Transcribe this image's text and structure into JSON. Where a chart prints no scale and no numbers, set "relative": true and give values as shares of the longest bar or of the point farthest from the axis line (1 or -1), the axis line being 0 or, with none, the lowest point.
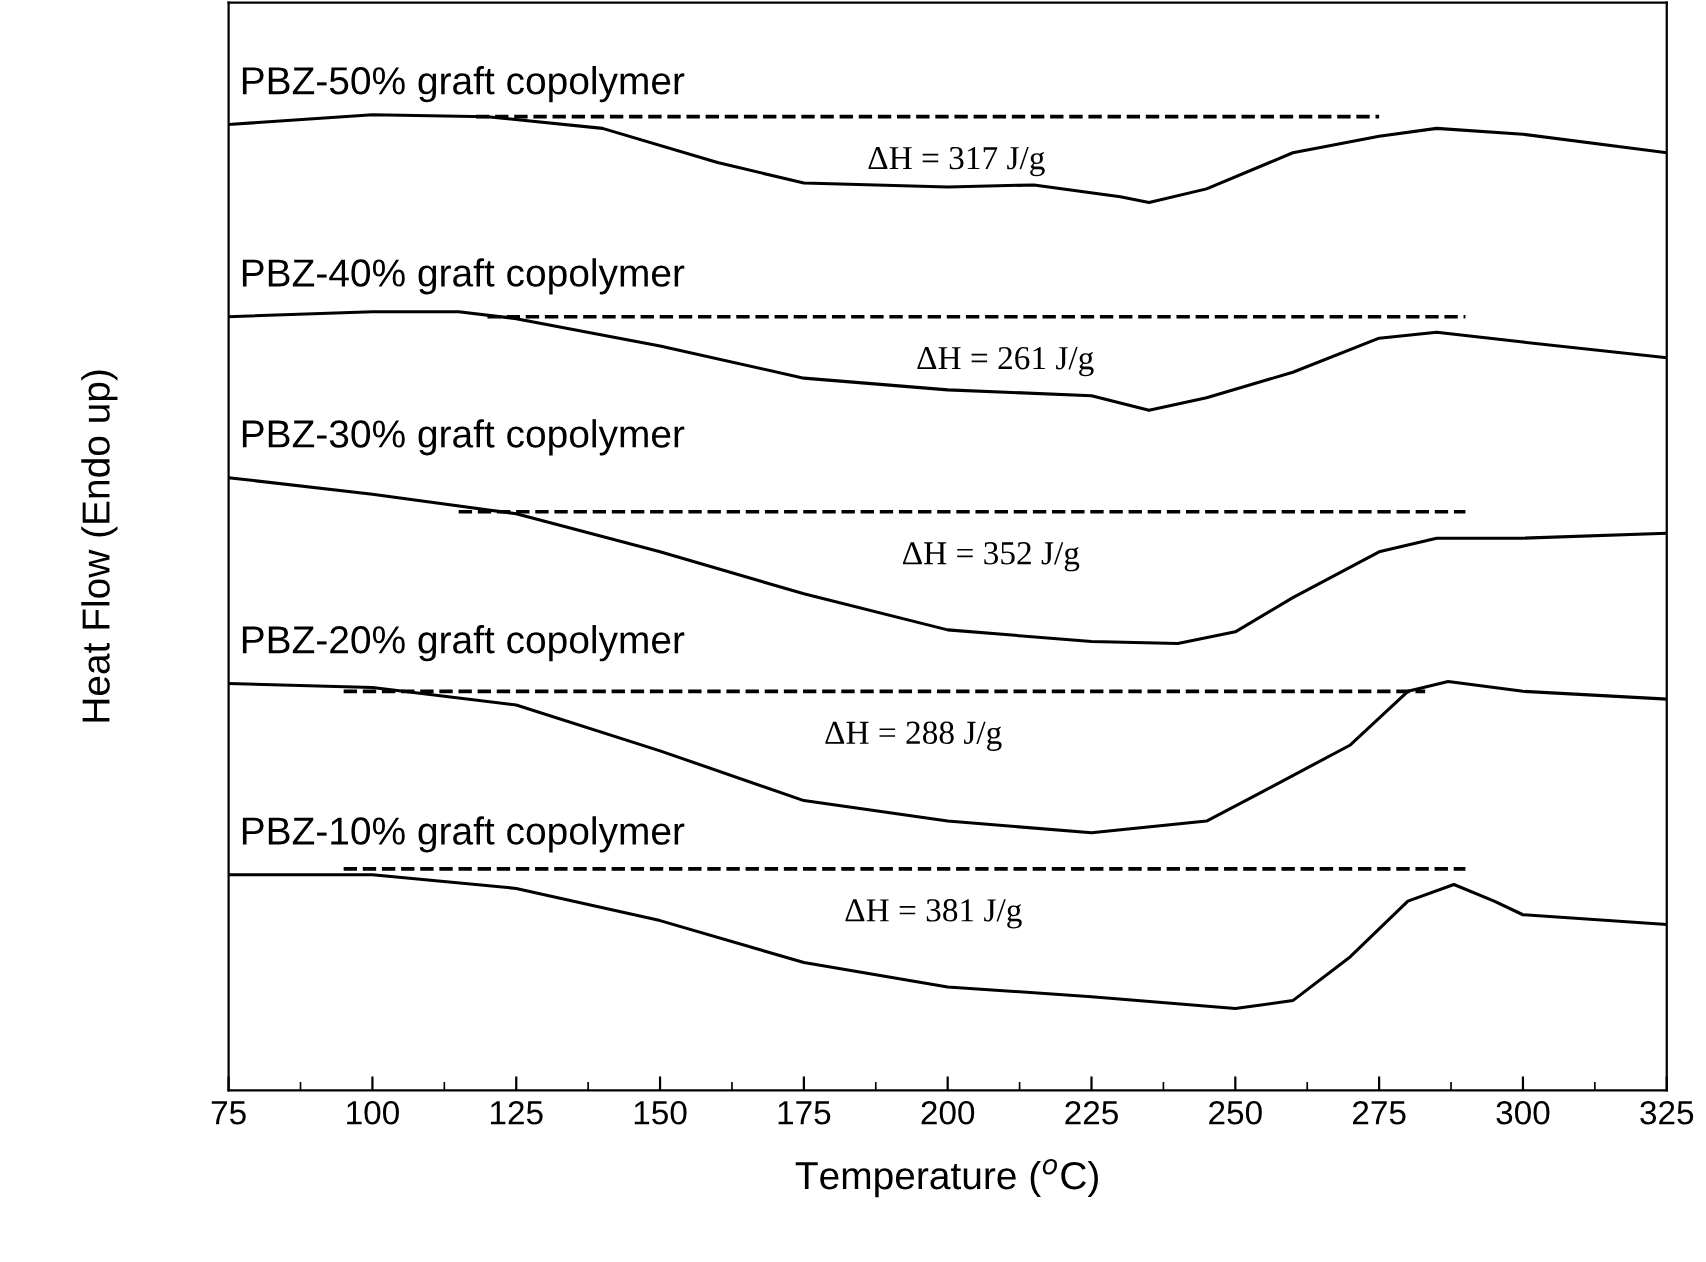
{
  "chart_data": {
    "type": "line",
    "relative": true,
    "xlabel": "Temperature ($^{o}$C)",
    "ylabel": "Heat Flow (Endo up)",
    "xlim": [
      75,
      325
    ],
    "xticks": [
      75,
      100,
      125,
      150,
      175,
      200,
      225,
      250,
      275,
      300,
      325
    ],
    "tick_labels": "x",
    "grid": false,
    "legend": false,
    "marker": "none",
    "series": [
      {
        "name": "PBZ-50% graft copolymer",
        "color": "#000000",
        "x": [
          75,
          100,
          120,
          140,
          160,
          175,
          200,
          215,
          230,
          235,
          245,
          260,
          275,
          285,
          300,
          325
        ],
        "values": [
          0.99,
          1.0,
          0.998,
          0.986,
          0.951,
          0.93,
          0.926,
          0.928,
          0.916,
          0.91,
          0.924,
          0.961,
          0.978,
          0.986,
          0.98,
          0.961
        ]
      },
      {
        "type": "line",
        "line_style": "dashed",
        "color": "#000000",
        "x": [
          118,
          275
        ],
        "values": [
          0.998,
          0.998
        ]
      },
      {
        "name": "PBZ-40% graft copolymer",
        "color": "#000000",
        "x": [
          75,
          100,
          115,
          125,
          150,
          175,
          200,
          225,
          235,
          245,
          260,
          275,
          285,
          300,
          325
        ],
        "values": [
          0.793,
          0.798,
          0.798,
          0.791,
          0.763,
          0.73,
          0.718,
          0.712,
          0.697,
          0.71,
          0.736,
          0.771,
          0.777,
          0.767,
          0.751
        ]
      },
      {
        "type": "line",
        "line_style": "dashed",
        "color": "#000000",
        "x": [
          120,
          290
        ],
        "values": [
          0.793,
          0.793
        ]
      },
      {
        "name": "PBZ-30% graft copolymer",
        "color": "#000000",
        "x": [
          75,
          100,
          125,
          150,
          175,
          200,
          225,
          240,
          250,
          260,
          275,
          285,
          300,
          325
        ],
        "values": [
          0.628,
          0.611,
          0.591,
          0.552,
          0.509,
          0.472,
          0.46,
          0.458,
          0.47,
          0.505,
          0.552,
          0.566,
          0.566,
          0.571
        ]
      },
      {
        "type": "line",
        "line_style": "dashed",
        "color": "#000000",
        "x": [
          115,
          290
        ],
        "values": [
          0.593,
          0.593
        ]
      },
      {
        "name": "PBZ-20% graft copolymer",
        "color": "#000000",
        "x": [
          75,
          100,
          125,
          150,
          175,
          200,
          225,
          245,
          255,
          270,
          280,
          287,
          300,
          325
        ],
        "values": [
          0.417,
          0.413,
          0.395,
          0.348,
          0.297,
          0.276,
          0.264,
          0.276,
          0.307,
          0.354,
          0.409,
          0.419,
          0.409,
          0.401
        ]
      },
      {
        "type": "line",
        "line_style": "dashed",
        "color": "#000000",
        "x": [
          95,
          283
        ],
        "values": [
          0.409,
          0.409
        ]
      },
      {
        "name": "PBZ-10% graft copolymer",
        "color": "#000000",
        "x": [
          75,
          100,
          125,
          150,
          175,
          200,
          225,
          250,
          260,
          270,
          280,
          288,
          295,
          300,
          325
        ],
        "values": [
          0.221,
          0.221,
          0.207,
          0.174,
          0.131,
          0.106,
          0.096,
          0.084,
          0.092,
          0.137,
          0.194,
          0.211,
          0.194,
          0.18,
          0.17
        ]
      },
      {
        "type": "line",
        "line_style": "dashed",
        "color": "#000000",
        "x": [
          95,
          290
        ],
        "values": [
          0.227,
          0.227
        ]
      }
    ],
    "annotations": [
      "ΔH = 317 J/g",
      "ΔH = 261 J/g",
      "ΔH = 352 J/g",
      "ΔH = 288 J/g",
      "ΔH = 381 J/g"
    ]
  }
}
